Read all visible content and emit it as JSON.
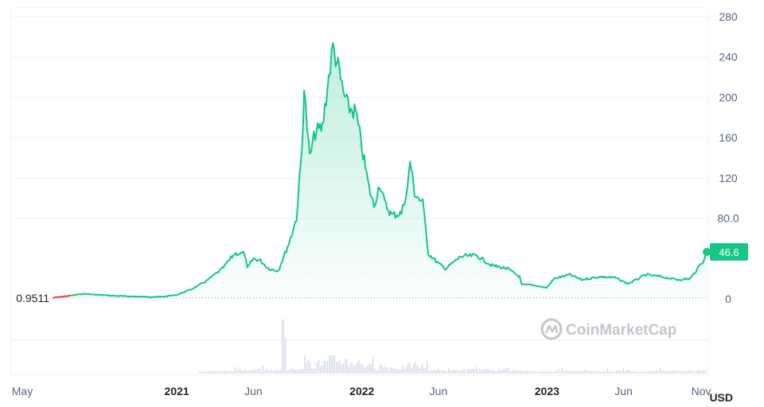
{
  "chart_data": {
    "type": "area",
    "currency": "USD",
    "start_value_label": "0.9511",
    "current_value_label": "46.6",
    "watermark": "CoinMarketCap",
    "ylim": [
      0,
      280
    ],
    "y_ticks": [
      "280",
      "240",
      "200",
      "160",
      "120",
      "80.0",
      "0"
    ],
    "x_range": [
      "2020-05-01",
      "2023-11-15"
    ],
    "x_ticks": [
      {
        "label": "May",
        "date": "2020-05-01",
        "bold": false
      },
      {
        "label": "2021",
        "date": "2021-01-01",
        "bold": true
      },
      {
        "label": "Jun",
        "date": "2021-06-01",
        "bold": false
      },
      {
        "label": "2022",
        "date": "2022-01-01",
        "bold": true
      },
      {
        "label": "Jun",
        "date": "2022-06-01",
        "bold": false
      },
      {
        "label": "2023",
        "date": "2023-01-01",
        "bold": true
      },
      {
        "label": "Jun",
        "date": "2023-06-01",
        "bold": false
      },
      {
        "label": "Nov",
        "date": "2023-11-01",
        "bold": false
      }
    ],
    "colors": {
      "line": "#16c784",
      "line_start": "#ea3943",
      "volume": "#cfd6e4",
      "grid": "#eff2f5"
    },
    "price_series": [
      [
        "2020-05-01",
        0.95
      ],
      [
        "2020-06-01",
        3
      ],
      [
        "2020-07-01",
        5
      ],
      [
        "2020-08-01",
        4
      ],
      [
        "2020-09-01",
        3
      ],
      [
        "2020-10-01",
        2.5
      ],
      [
        "2020-11-01",
        2
      ],
      [
        "2020-12-01",
        2
      ],
      [
        "2021-01-01",
        4
      ],
      [
        "2021-02-01",
        10
      ],
      [
        "2021-03-01",
        18
      ],
      [
        "2021-04-01",
        30
      ],
      [
        "2021-04-25",
        45
      ],
      [
        "2021-05-15",
        45
      ],
      [
        "2021-05-20",
        30
      ],
      [
        "2021-06-01",
        40
      ],
      [
        "2021-06-15",
        38
      ],
      [
        "2021-07-01",
        30
      ],
      [
        "2021-07-20",
        28
      ],
      [
        "2021-08-10",
        55
      ],
      [
        "2021-08-25",
        80
      ],
      [
        "2021-09-05",
        150
      ],
      [
        "2021-09-09",
        210
      ],
      [
        "2021-09-15",
        170
      ],
      [
        "2021-09-20",
        140
      ],
      [
        "2021-10-01",
        165
      ],
      [
        "2021-10-15",
        170
      ],
      [
        "2021-10-25",
        210
      ],
      [
        "2021-11-05",
        250
      ],
      [
        "2021-11-15",
        230
      ],
      [
        "2021-11-25",
        205
      ],
      [
        "2021-12-05",
        190
      ],
      [
        "2021-12-20",
        185
      ],
      [
        "2022-01-01",
        150
      ],
      [
        "2022-01-15",
        110
      ],
      [
        "2022-01-25",
        92
      ],
      [
        "2022-02-05",
        115
      ],
      [
        "2022-02-15",
        95
      ],
      [
        "2022-03-01",
        83
      ],
      [
        "2022-03-20",
        85
      ],
      [
        "2022-04-01",
        110
      ],
      [
        "2022-04-06",
        137
      ],
      [
        "2022-04-15",
        105
      ],
      [
        "2022-05-01",
        95
      ],
      [
        "2022-05-07",
        70
      ],
      [
        "2022-05-12",
        45
      ],
      [
        "2022-06-01",
        35
      ],
      [
        "2022-06-15",
        30
      ],
      [
        "2022-07-15",
        42
      ],
      [
        "2022-08-15",
        43
      ],
      [
        "2022-09-15",
        33
      ],
      [
        "2022-10-15",
        30
      ],
      [
        "2022-11-08",
        22
      ],
      [
        "2022-11-12",
        14
      ],
      [
        "2022-12-01",
        14
      ],
      [
        "2022-12-31",
        11
      ],
      [
        "2023-01-15",
        20
      ],
      [
        "2023-02-15",
        24
      ],
      [
        "2023-03-10",
        19
      ],
      [
        "2023-04-15",
        22
      ],
      [
        "2023-05-15",
        21
      ],
      [
        "2023-06-10",
        15
      ],
      [
        "2023-07-15",
        24
      ],
      [
        "2023-08-15",
        22
      ],
      [
        "2023-09-15",
        19
      ],
      [
        "2023-10-10",
        20
      ],
      [
        "2023-10-25",
        30
      ],
      [
        "2023-11-05",
        38
      ],
      [
        "2023-11-12",
        46.6
      ]
    ]
  }
}
